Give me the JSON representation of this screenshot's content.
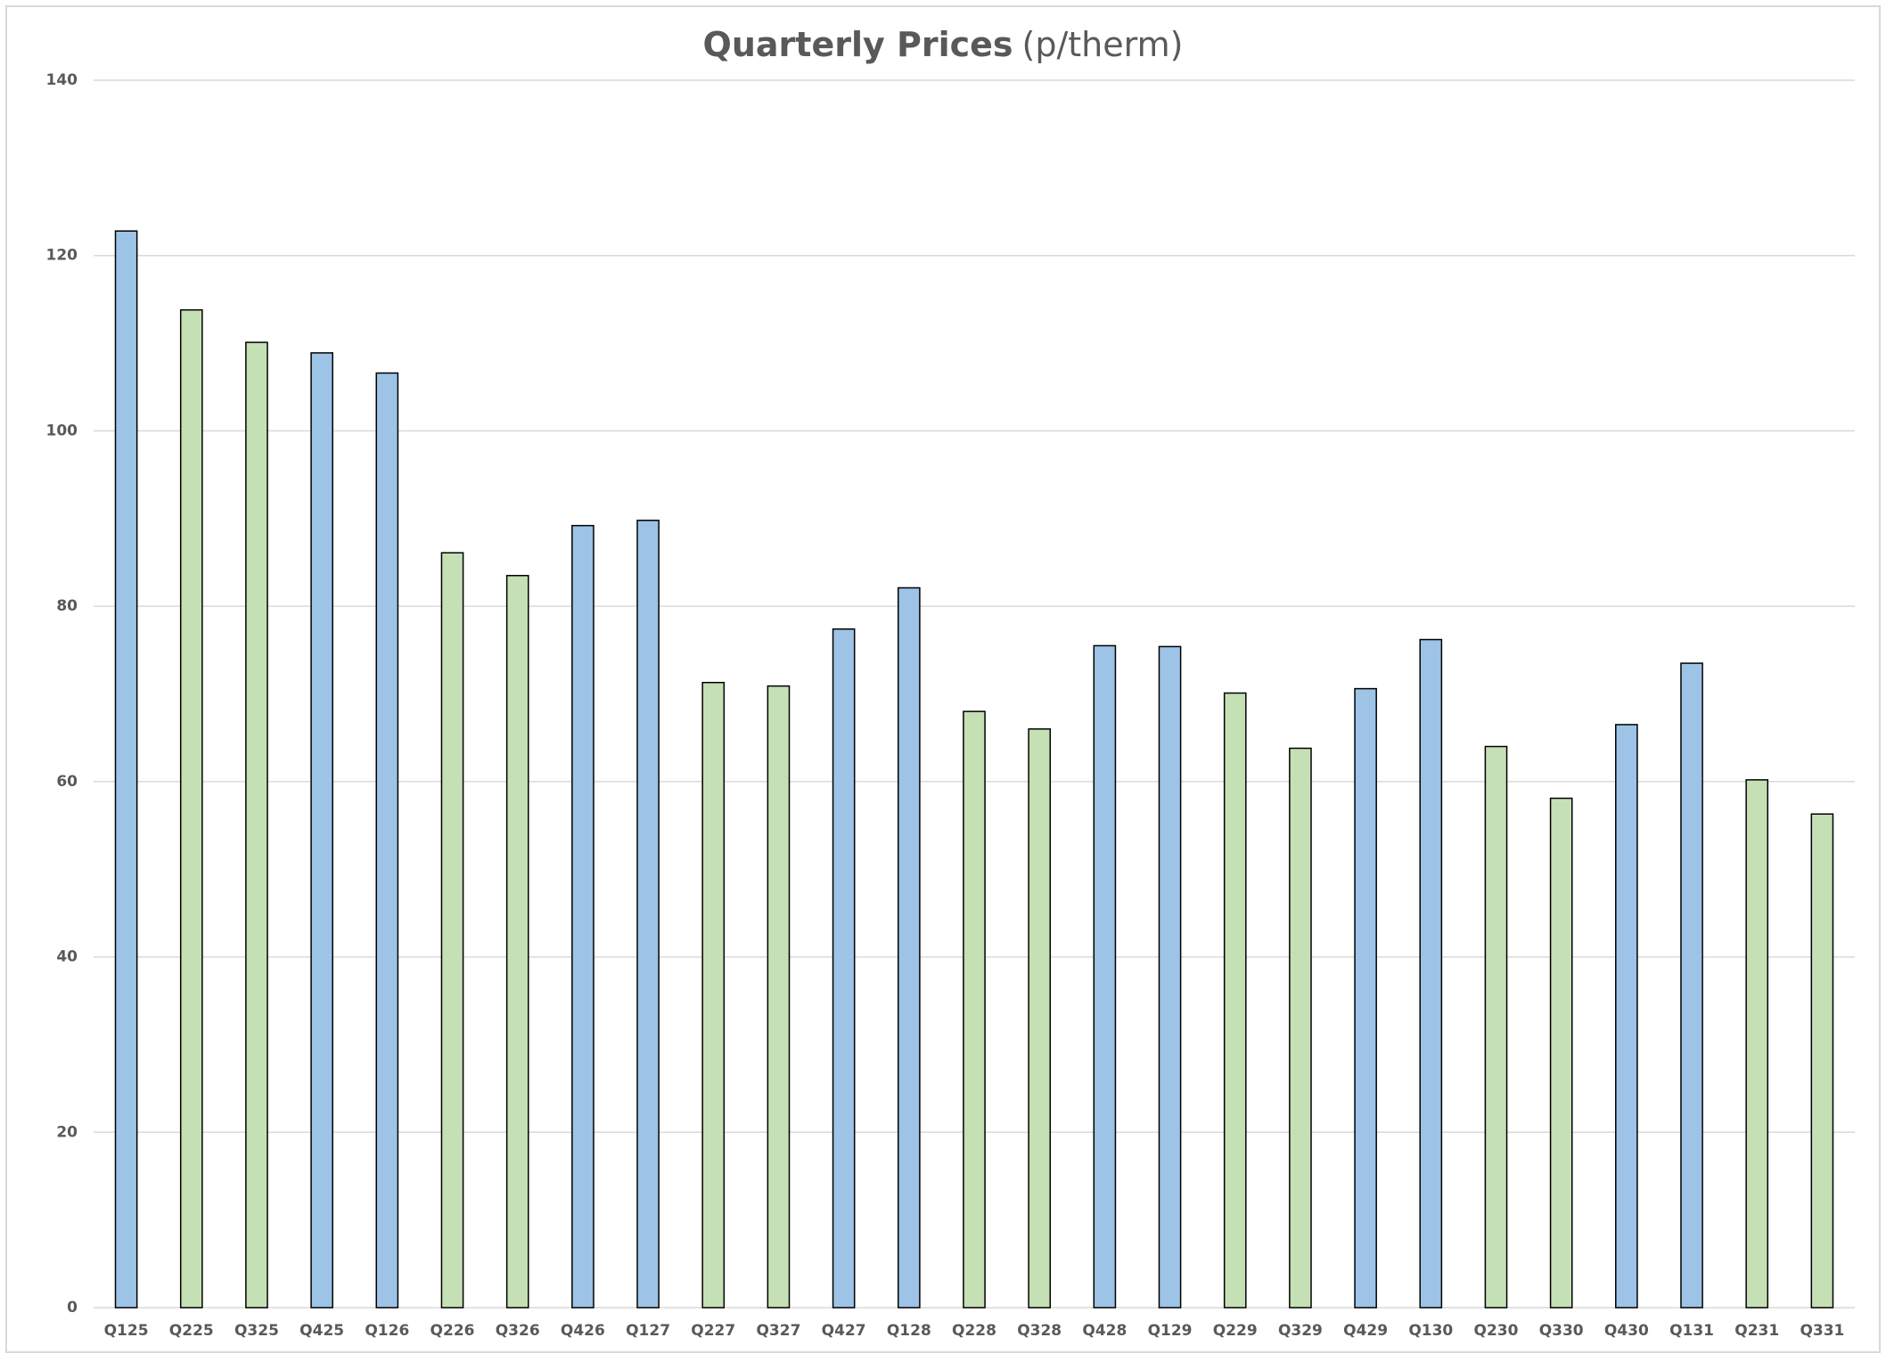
{
  "chart_data": {
    "type": "bar",
    "title": "Quarterly Prices",
    "title_unit": "(p/therm)",
    "categories": [
      "Q125",
      "Q225",
      "Q325",
      "Q425",
      "Q126",
      "Q226",
      "Q326",
      "Q426",
      "Q127",
      "Q227",
      "Q327",
      "Q427",
      "Q128",
      "Q228",
      "Q328",
      "Q428",
      "Q129",
      "Q229",
      "Q329",
      "Q429",
      "Q130",
      "Q230",
      "Q330",
      "Q430",
      "Q131",
      "Q231",
      "Q331"
    ],
    "values": [
      122.8,
      113.8,
      110.1,
      108.9,
      106.6,
      86.1,
      83.5,
      89.2,
      89.8,
      71.3,
      70.9,
      77.4,
      82.1,
      68.0,
      66.0,
      75.5,
      75.4,
      70.1,
      63.8,
      70.6,
      76.2,
      64.0,
      58.1,
      66.5,
      73.5,
      60.2,
      56.3
    ],
    "colors": [
      "#9dc3e6",
      "#c5e0b4",
      "#c5e0b4",
      "#9dc3e6",
      "#9dc3e6",
      "#c5e0b4",
      "#c5e0b4",
      "#9dc3e6",
      "#9dc3e6",
      "#c5e0b4",
      "#c5e0b4",
      "#9dc3e6",
      "#9dc3e6",
      "#c5e0b4",
      "#c5e0b4",
      "#9dc3e6",
      "#9dc3e6",
      "#c5e0b4",
      "#c5e0b4",
      "#9dc3e6",
      "#9dc3e6",
      "#c5e0b4",
      "#c5e0b4",
      "#9dc3e6",
      "#9dc3e6",
      "#c5e0b4",
      "#c5e0b4"
    ],
    "ylim": [
      0,
      140
    ],
    "yticks": [
      0,
      20,
      40,
      60,
      80,
      100,
      120,
      140
    ],
    "grid": true
  }
}
